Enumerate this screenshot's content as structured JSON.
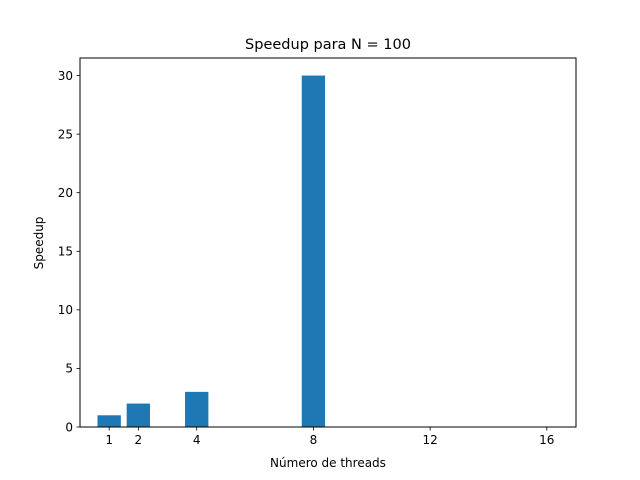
{
  "chart_data": {
    "type": "bar",
    "title": "Speedup para N = 100",
    "xlabel": "Número de threads",
    "ylabel": "Speedup",
    "x": [
      1,
      2,
      4,
      8
    ],
    "values": [
      1,
      2,
      3,
      30
    ],
    "bar_color": "#1f77b4",
    "xticks": [
      1,
      2,
      4,
      8,
      12,
      16
    ],
    "yticks": [
      0,
      5,
      10,
      15,
      20,
      25,
      30
    ],
    "xlim": [
      0.0,
      17.0
    ],
    "ylim": [
      0,
      31.5
    ],
    "grid": false,
    "legend": "none"
  }
}
